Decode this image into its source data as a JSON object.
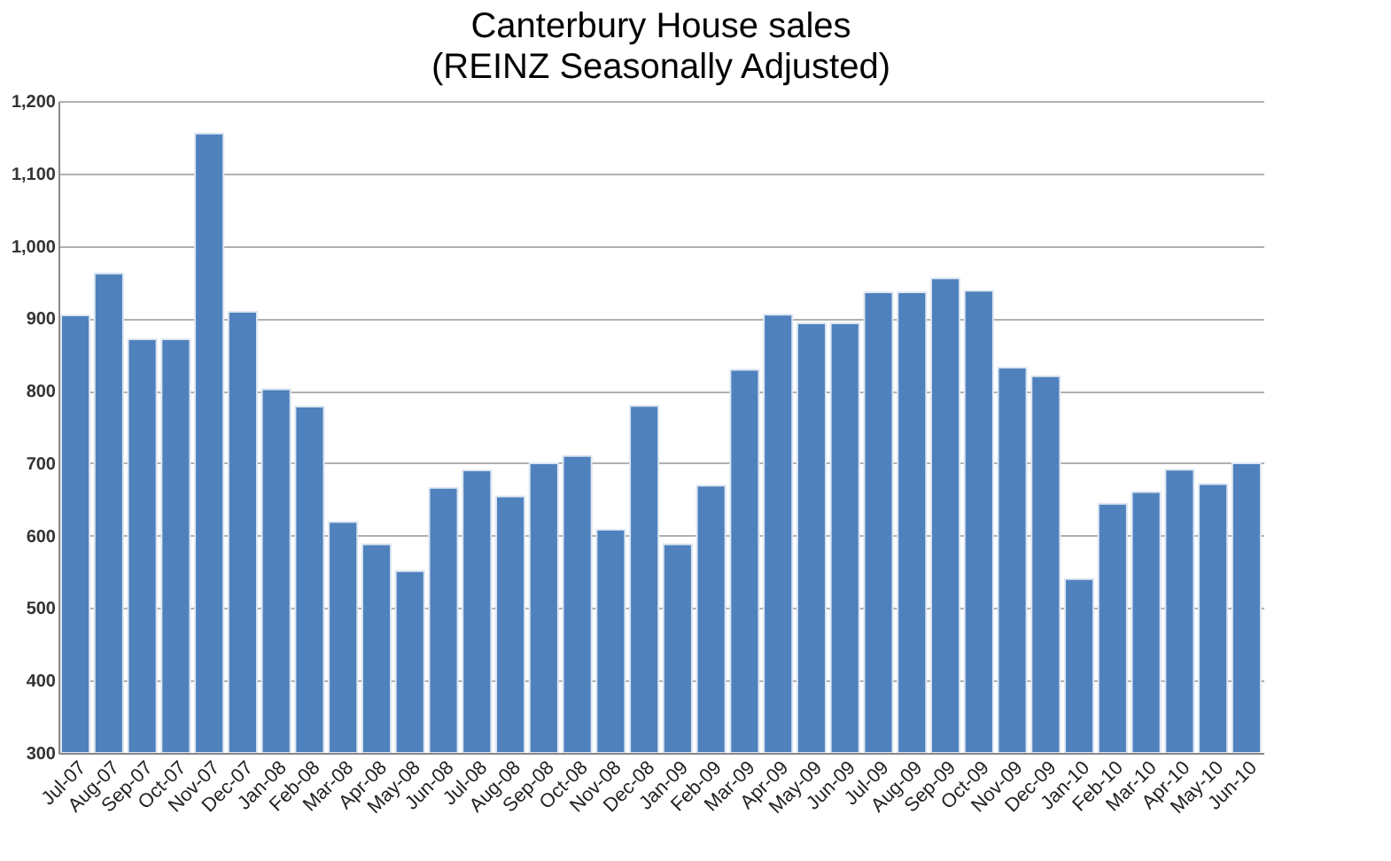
{
  "chart_data": {
    "type": "bar",
    "title": "Canterbury House sales",
    "subtitle": "(REINZ Seasonally Adjusted)",
    "categories": [
      "Jul-07",
      "Aug-07",
      "Sep-07",
      "Oct-07",
      "Nov-07",
      "Dec-07",
      "Jan-08",
      "Feb-08",
      "Mar-08",
      "Apr-08",
      "May-08",
      "Jun-08",
      "Jul-08",
      "Aug-08",
      "Sep-08",
      "Oct-08",
      "Nov-08",
      "Dec-08",
      "Jan-09",
      "Feb-09",
      "Mar-09",
      "Apr-09",
      "May-09",
      "Jun-09",
      "Jul-09",
      "Aug-09",
      "Sep-09",
      "Oct-09",
      "Nov-09",
      "Dec-09",
      "Jan-10",
      "Feb-10",
      "Mar-10",
      "Apr-10",
      "May-10",
      "Jun-10"
    ],
    "values": [
      904,
      962,
      871,
      871,
      1155,
      909,
      802,
      778,
      619,
      588,
      551,
      666,
      690,
      654,
      700,
      710,
      608,
      779,
      588,
      669,
      829,
      905,
      893,
      893,
      936,
      936,
      955,
      938,
      832,
      820,
      540,
      644,
      660,
      691,
      671,
      700
    ],
    "color": "#4f81bd",
    "ylim": [
      300,
      1200
    ],
    "yticks": [
      {
        "value": 300,
        "label": "300"
      },
      {
        "value": 400,
        "label": "400"
      },
      {
        "value": 500,
        "label": "500"
      },
      {
        "value": 600,
        "label": "600"
      },
      {
        "value": 700,
        "label": "700"
      },
      {
        "value": 800,
        "label": "800"
      },
      {
        "value": 900,
        "label": "900"
      },
      {
        "value": 1000,
        "label": "1,000"
      },
      {
        "value": 1100,
        "label": "1,100"
      },
      {
        "value": 1200,
        "label": "1,200"
      }
    ],
    "grid": "y"
  }
}
